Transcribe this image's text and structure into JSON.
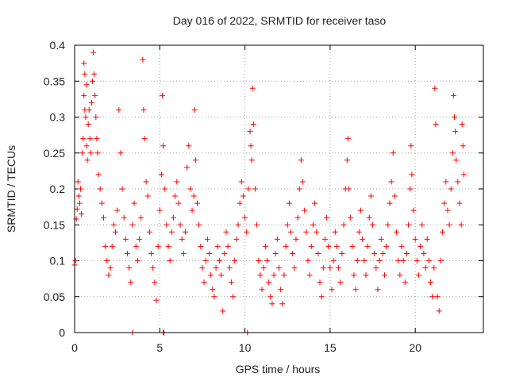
{
  "chart_data": {
    "type": "scatter",
    "title": "Day 016 of 2022, SRMTID for receiver taso",
    "xlabel": "GPS time / hours",
    "ylabel": "SRMTID / TECUs",
    "xlim": [
      0,
      24
    ],
    "ylim": [
      0,
      0.4
    ],
    "x_ticks": [
      0,
      5,
      10,
      15,
      20
    ],
    "x_tick_labels": [
      "0",
      "5",
      "10",
      "15",
      "20"
    ],
    "y_ticks": [
      0,
      0.05,
      0.1,
      0.15,
      0.2,
      0.25,
      0.3,
      0.35,
      0.4
    ],
    "y_tick_labels": [
      "0",
      "0.05",
      "0.1",
      "0.15",
      "0.2",
      "0.25",
      "0.3",
      "0.35",
      "0.4"
    ],
    "grid": true,
    "marker": "plus",
    "color": "#ff0000",
    "series": [
      {
        "name": "SRMTID",
        "points": [
          [
            0.0,
            0.094
          ],
          [
            0.05,
            0.1
          ],
          [
            0.1,
            0.158
          ],
          [
            0.15,
            0.172
          ],
          [
            0.2,
            0.21
          ],
          [
            0.25,
            0.19
          ],
          [
            0.3,
            0.18
          ],
          [
            0.35,
            0.2
          ],
          [
            0.4,
            0.165
          ],
          [
            0.45,
            0.25
          ],
          [
            0.5,
            0.27
          ],
          [
            0.55,
            0.33
          ],
          [
            0.6,
            0.31
          ],
          [
            0.65,
            0.3
          ],
          [
            0.7,
            0.26
          ],
          [
            0.75,
            0.24
          ],
          [
            0.8,
            0.29
          ],
          [
            0.85,
            0.31
          ],
          [
            0.9,
            0.27
          ],
          [
            0.95,
            0.25
          ],
          [
            0.55,
            0.375
          ],
          [
            0.6,
            0.36
          ],
          [
            0.7,
            0.345
          ],
          [
            1.0,
            0.32
          ],
          [
            1.05,
            0.35
          ],
          [
            1.1,
            0.39
          ],
          [
            1.15,
            0.36
          ],
          [
            1.2,
            0.33
          ],
          [
            1.25,
            0.3
          ],
          [
            1.3,
            0.27
          ],
          [
            1.35,
            0.25
          ],
          [
            1.4,
            0.22
          ],
          [
            1.5,
            0.2
          ],
          [
            1.6,
            0.18
          ],
          [
            1.7,
            0.16
          ],
          [
            1.8,
            0.12
          ],
          [
            1.9,
            0.1
          ],
          [
            2.0,
            0.08
          ],
          [
            2.1,
            0.09
          ],
          [
            2.2,
            0.12
          ],
          [
            2.3,
            0.15
          ],
          [
            2.4,
            0.14
          ],
          [
            2.5,
            0.17
          ],
          [
            2.6,
            0.31
          ],
          [
            2.7,
            0.25
          ],
          [
            2.8,
            0.2
          ],
          [
            2.9,
            0.16
          ],
          [
            3.0,
            0.13
          ],
          [
            3.1,
            0.11
          ],
          [
            3.2,
            0.09
          ],
          [
            3.3,
            0.07
          ],
          [
            3.4,
            0.15
          ],
          [
            3.5,
            0.18
          ],
          [
            3.6,
            0.12
          ],
          [
            3.7,
            0.1
          ],
          [
            3.8,
            0.13
          ],
          [
            3.9,
            0.16
          ],
          [
            4.0,
            0.38
          ],
          [
            4.05,
            0.31
          ],
          [
            4.1,
            0.27
          ],
          [
            4.2,
            0.21
          ],
          [
            4.3,
            0.19
          ],
          [
            4.4,
            0.14
          ],
          [
            4.5,
            0.11
          ],
          [
            4.6,
            0.09
          ],
          [
            4.7,
            0.07
          ],
          [
            4.8,
            0.045
          ],
          [
            4.9,
            0.12
          ],
          [
            5.0,
            0.17
          ],
          [
            5.1,
            0.22
          ],
          [
            5.15,
            0.33
          ],
          [
            5.2,
            0.26
          ],
          [
            5.3,
            0.2
          ],
          [
            5.4,
            0.15
          ],
          [
            5.5,
            0.12
          ],
          [
            5.6,
            0.1
          ],
          [
            5.7,
            0.14
          ],
          [
            5.8,
            0.16
          ],
          [
            5.9,
            0.19
          ],
          [
            6.0,
            0.21
          ],
          [
            6.1,
            0.18
          ],
          [
            6.2,
            0.15
          ],
          [
            6.3,
            0.13
          ],
          [
            6.4,
            0.11
          ],
          [
            6.5,
            0.14
          ],
          [
            6.6,
            0.23
          ],
          [
            6.7,
            0.26
          ],
          [
            6.8,
            0.2
          ],
          [
            6.9,
            0.17
          ],
          [
            7.0,
            0.19
          ],
          [
            7.05,
            0.31
          ],
          [
            7.1,
            0.24
          ],
          [
            7.2,
            0.18
          ],
          [
            7.3,
            0.15
          ],
          [
            7.4,
            0.12
          ],
          [
            7.5,
            0.09
          ],
          [
            7.6,
            0.07
          ],
          [
            7.7,
            0.1
          ],
          [
            7.8,
            0.13
          ],
          [
            7.9,
            0.11
          ],
          [
            8.0,
            0.08
          ],
          [
            8.1,
            0.06
          ],
          [
            8.2,
            0.05
          ],
          [
            8.3,
            0.09
          ],
          [
            8.4,
            0.12
          ],
          [
            8.5,
            0.1
          ],
          [
            8.6,
            0.08
          ],
          [
            8.7,
            0.03
          ],
          [
            8.8,
            0.11
          ],
          [
            8.9,
            0.14
          ],
          [
            9.0,
            0.12
          ],
          [
            9.1,
            0.09
          ],
          [
            9.2,
            0.07
          ],
          [
            9.3,
            0.05
          ],
          [
            9.4,
            0.1
          ],
          [
            9.5,
            0.13
          ],
          [
            9.6,
            0.15
          ],
          [
            9.7,
            0.18
          ],
          [
            9.8,
            0.21
          ],
          [
            9.9,
            0.19
          ],
          [
            10.0,
            0.16
          ],
          [
            10.1,
            0.14
          ],
          [
            10.2,
            0.2
          ],
          [
            10.3,
            0.28
          ],
          [
            10.35,
            0.26
          ],
          [
            10.4,
            0.24
          ],
          [
            10.45,
            0.34
          ],
          [
            10.5,
            0.29
          ],
          [
            10.6,
            0.2
          ],
          [
            10.7,
            0.15
          ],
          [
            10.8,
            0.1
          ],
          [
            10.9,
            0.08
          ],
          [
            11.0,
            0.06
          ],
          [
            11.1,
            0.09
          ],
          [
            11.2,
            0.12
          ],
          [
            11.3,
            0.1
          ],
          [
            11.4,
            0.07
          ],
          [
            11.5,
            0.05
          ],
          [
            11.6,
            0.04
          ],
          [
            11.7,
            0.08
          ],
          [
            11.8,
            0.11
          ],
          [
            11.9,
            0.13
          ],
          [
            12.0,
            0.09
          ],
          [
            12.1,
            0.06
          ],
          [
            12.2,
            0.04
          ],
          [
            12.3,
            0.08
          ],
          [
            12.4,
            0.12
          ],
          [
            12.5,
            0.15
          ],
          [
            12.6,
            0.18
          ],
          [
            12.7,
            0.14
          ],
          [
            12.8,
            0.11
          ],
          [
            12.9,
            0.09
          ],
          [
            13.0,
            0.13
          ],
          [
            13.1,
            0.16
          ],
          [
            13.2,
            0.2
          ],
          [
            13.3,
            0.24
          ],
          [
            13.4,
            0.21
          ],
          [
            13.5,
            0.17
          ],
          [
            13.6,
            0.14
          ],
          [
            13.7,
            0.1
          ],
          [
            13.8,
            0.08
          ],
          [
            13.9,
            0.12
          ],
          [
            14.0,
            0.15
          ],
          [
            14.1,
            0.18
          ],
          [
            14.2,
            0.14
          ],
          [
            14.3,
            0.11
          ],
          [
            14.4,
            0.07
          ],
          [
            14.5,
            0.05
          ],
          [
            14.6,
            0.09
          ],
          [
            14.7,
            0.13
          ],
          [
            14.8,
            0.16
          ],
          [
            14.9,
            0.12
          ],
          [
            15.0,
            0.09
          ],
          [
            15.1,
            0.06
          ],
          [
            15.2,
            0.1
          ],
          [
            15.3,
            0.14
          ],
          [
            15.4,
            0.12
          ],
          [
            15.5,
            0.09
          ],
          [
            15.6,
            0.07
          ],
          [
            15.7,
            0.11
          ],
          [
            15.8,
            0.15
          ],
          [
            15.9,
            0.2
          ],
          [
            16.0,
            0.24
          ],
          [
            16.05,
            0.27
          ],
          [
            16.1,
            0.2
          ],
          [
            16.2,
            0.16
          ],
          [
            16.3,
            0.12
          ],
          [
            16.4,
            0.08
          ],
          [
            16.5,
            0.06
          ],
          [
            16.6,
            0.1
          ],
          [
            16.7,
            0.14
          ],
          [
            16.8,
            0.17
          ],
          [
            16.9,
            0.13
          ],
          [
            17.0,
            0.1
          ],
          [
            17.1,
            0.08
          ],
          [
            17.2,
            0.12
          ],
          [
            17.3,
            0.16
          ],
          [
            17.4,
            0.19
          ],
          [
            17.5,
            0.15
          ],
          [
            17.6,
            0.11
          ],
          [
            17.7,
            0.09
          ],
          [
            17.8,
            0.06
          ],
          [
            17.9,
            0.1
          ],
          [
            18.0,
            0.13
          ],
          [
            18.1,
            0.11
          ],
          [
            18.2,
            0.08
          ],
          [
            18.3,
            0.12
          ],
          [
            18.4,
            0.15
          ],
          [
            18.5,
            0.18
          ],
          [
            18.6,
            0.21
          ],
          [
            18.7,
            0.25
          ],
          [
            18.8,
            0.19
          ],
          [
            18.9,
            0.14
          ],
          [
            19.0,
            0.1
          ],
          [
            19.1,
            0.08
          ],
          [
            19.2,
            0.12
          ],
          [
            19.3,
            0.1
          ],
          [
            19.4,
            0.07
          ],
          [
            19.5,
            0.11
          ],
          [
            19.6,
            0.15
          ],
          [
            19.7,
            0.2
          ],
          [
            19.75,
            0.26
          ],
          [
            19.8,
            0.22
          ],
          [
            19.9,
            0.17
          ],
          [
            20.0,
            0.13
          ],
          [
            20.1,
            0.1
          ],
          [
            20.2,
            0.08
          ],
          [
            20.3,
            0.12
          ],
          [
            20.4,
            0.15
          ],
          [
            20.5,
            0.11
          ],
          [
            20.6,
            0.09
          ],
          [
            20.7,
            0.13
          ],
          [
            20.8,
            0.1
          ],
          [
            20.9,
            0.07
          ],
          [
            21.0,
            0.05
          ],
          [
            21.1,
            0.09
          ],
          [
            21.15,
            0.34
          ],
          [
            21.2,
            0.29
          ],
          [
            21.3,
            0.05
          ],
          [
            21.4,
            0.03
          ],
          [
            21.5,
            0.1
          ],
          [
            21.6,
            0.14
          ],
          [
            21.7,
            0.18
          ],
          [
            21.8,
            0.21
          ],
          [
            21.9,
            0.17
          ],
          [
            22.0,
            0.15
          ],
          [
            22.1,
            0.2
          ],
          [
            22.2,
            0.25
          ],
          [
            22.25,
            0.33
          ],
          [
            22.3,
            0.3
          ],
          [
            22.35,
            0.28
          ],
          [
            22.4,
            0.24
          ],
          [
            22.5,
            0.21
          ],
          [
            22.6,
            0.18
          ],
          [
            22.7,
            0.15
          ],
          [
            22.75,
            0.29
          ],
          [
            22.8,
            0.26
          ],
          [
            22.85,
            0.22
          ]
        ]
      }
    ],
    "zero_markers_x": [
      3.4,
      5.2,
      5.25,
      10.15
    ]
  }
}
